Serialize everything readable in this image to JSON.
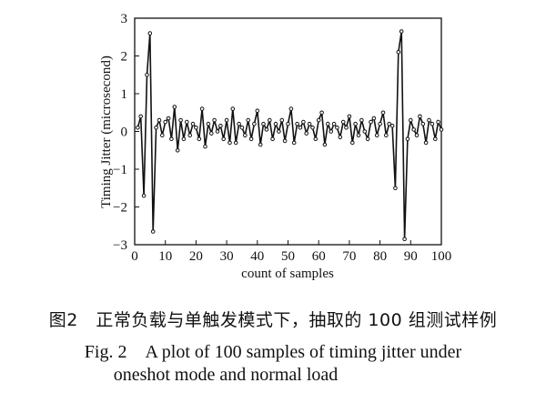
{
  "chart_data": {
    "type": "line",
    "xlabel": "count of samples",
    "ylabel": "Timing Jitter (microsecond)",
    "xlim": [
      0,
      100
    ],
    "ylim": [
      -3,
      3
    ],
    "x_ticks": [
      0,
      10,
      20,
      30,
      40,
      50,
      60,
      70,
      80,
      90,
      100
    ],
    "y_ticks": [
      -3,
      -2,
      -1,
      0,
      1,
      2,
      3
    ],
    "grid": false,
    "legend": "none",
    "marker": "open-circle",
    "x": [
      1,
      2,
      3,
      4,
      5,
      6,
      7,
      8,
      9,
      10,
      11,
      12,
      13,
      14,
      15,
      16,
      17,
      18,
      19,
      20,
      21,
      22,
      23,
      24,
      25,
      26,
      27,
      28,
      29,
      30,
      31,
      32,
      33,
      34,
      35,
      36,
      37,
      38,
      39,
      40,
      41,
      42,
      43,
      44,
      45,
      46,
      47,
      48,
      49,
      50,
      51,
      52,
      53,
      54,
      55,
      56,
      57,
      58,
      59,
      60,
      61,
      62,
      63,
      64,
      65,
      66,
      67,
      68,
      69,
      70,
      71,
      72,
      73,
      74,
      75,
      76,
      77,
      78,
      79,
      80,
      81,
      82,
      83,
      84,
      85,
      86,
      87,
      88,
      89,
      90,
      91,
      92,
      93,
      94,
      95,
      96,
      97,
      98,
      99,
      100
    ],
    "y": [
      0.1,
      0.4,
      -1.7,
      1.5,
      2.6,
      -2.65,
      0.1,
      0.3,
      -0.1,
      0.25,
      0.35,
      -0.2,
      0.65,
      -0.5,
      0.3,
      -0.2,
      0.25,
      -0.1,
      0.2,
      0.1,
      -0.2,
      0.6,
      -0.4,
      0.2,
      -0.05,
      0.3,
      0.0,
      0.15,
      -0.2,
      0.3,
      -0.3,
      0.6,
      -0.3,
      0.2,
      0.1,
      -0.1,
      0.3,
      -0.2,
      0.2,
      0.55,
      -0.35,
      0.2,
      0.05,
      0.3,
      -0.2,
      0.2,
      0.0,
      0.3,
      -0.25,
      0.2,
      0.6,
      -0.3,
      0.2,
      0.1,
      0.25,
      -0.05,
      0.2,
      0.1,
      -0.2,
      0.3,
      0.5,
      -0.35,
      0.2,
      0.0,
      0.2,
      0.1,
      -0.15,
      0.25,
      0.1,
      0.4,
      -0.3,
      0.2,
      -0.1,
      0.3,
      0.0,
      -0.2,
      0.25,
      0.35,
      -0.1,
      0.2,
      0.5,
      -0.1,
      0.2,
      0.15,
      -1.5,
      2.1,
      2.65,
      -2.85,
      -0.2,
      0.3,
      0.05,
      -0.1,
      0.4,
      0.2,
      -0.3,
      0.3,
      0.2,
      -0.2,
      0.25,
      0.05
    ]
  },
  "captions": {
    "cn": "图2　正常负载与单触发模式下，抽取的 100 组测试样例",
    "en_line1": "Fig. 2　A plot of 100 samples of timing jitter under",
    "en_line2": "oneshot mode and normal load"
  }
}
